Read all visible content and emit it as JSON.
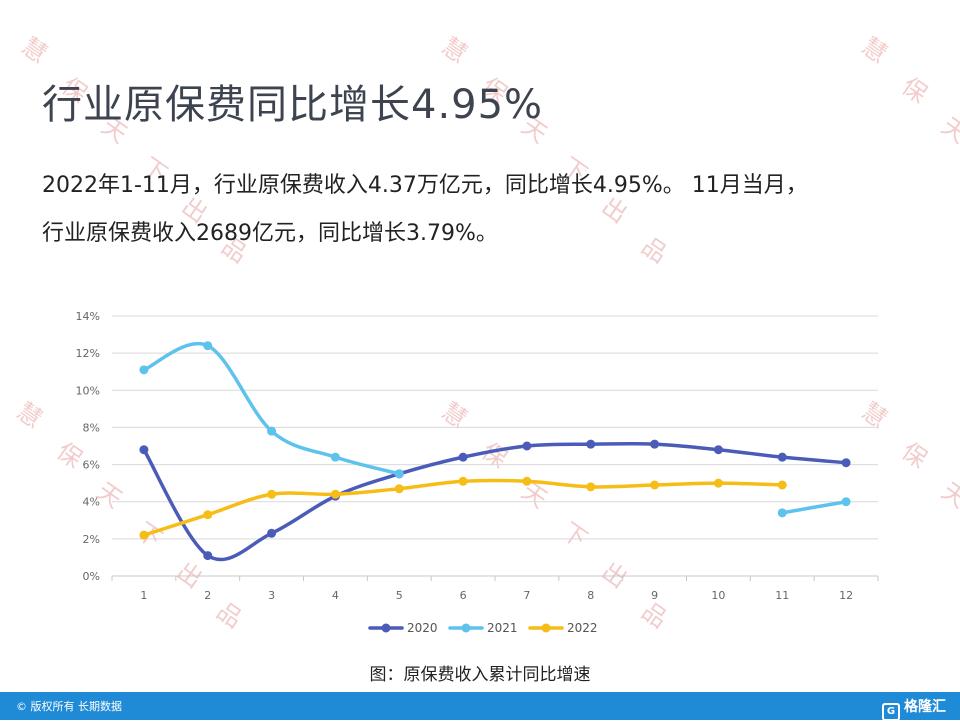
{
  "title": "行业原保费同比增长4.95%",
  "body": {
    "line1": "2022年1-11月，行业原保费收入4.37万亿元，同比增长4.95%。 11月当月，",
    "line2": "行业原保费收入2689亿元，同比增长3.79%。"
  },
  "caption": "图：原保费收入累计同比增速",
  "footer": {
    "copyright": "© 版权所有 长期数据",
    "logo_text": "格隆汇"
  },
  "watermark_text": "慧保天下出品",
  "colors": {
    "series_2020": "#4a5cb8",
    "series_2021": "#5ec3ec",
    "series_2022": "#f6bd16",
    "footer": "#1f8ad6"
  },
  "chart_data": {
    "type": "line",
    "x": [
      1,
      2,
      3,
      4,
      5,
      6,
      7,
      8,
      9,
      10,
      11,
      12
    ],
    "ylim": [
      0,
      14
    ],
    "yticks": [
      "0%",
      "2%",
      "4%",
      "6%",
      "8%",
      "10%",
      "12%",
      "14%"
    ],
    "grid": true,
    "legend_position": "bottom",
    "series": [
      {
        "name": "2020",
        "values": [
          6.8,
          1.1,
          2.3,
          4.3,
          5.5,
          6.4,
          7.0,
          7.1,
          7.1,
          6.8,
          6.4,
          6.1
        ]
      },
      {
        "name": "2021",
        "values": [
          11.1,
          12.4,
          7.8,
          6.4,
          5.5,
          null,
          null,
          null,
          null,
          null,
          3.4,
          4.0
        ]
      },
      {
        "name": "2022",
        "values": [
          2.2,
          3.3,
          4.4,
          4.4,
          4.7,
          5.1,
          5.1,
          4.8,
          4.9,
          5.0,
          4.9,
          null
        ]
      }
    ]
  }
}
